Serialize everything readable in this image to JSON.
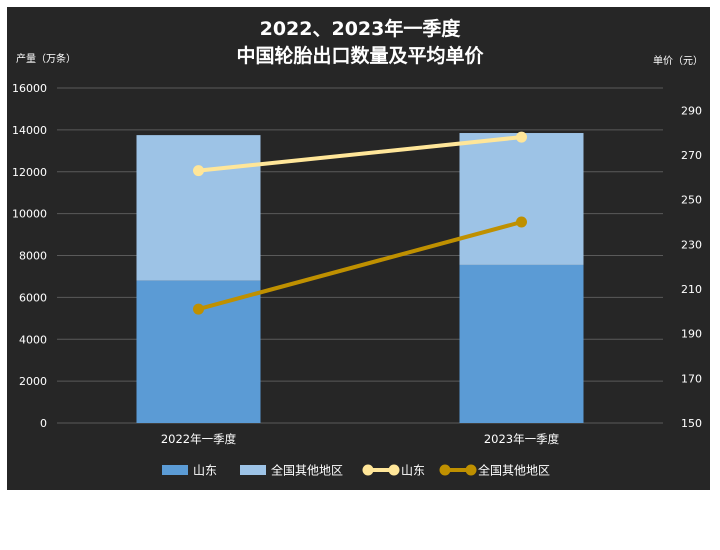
{
  "chart_data": {
    "type": "bar",
    "title_lines": [
      "2022、2023年一季度",
      "中国轮胎出口数量及平均单价"
    ],
    "ylabel_left": "产量（万条）",
    "ylabel_right": "单价（元）",
    "categories": [
      "2022年一季度",
      "2023年一季度"
    ],
    "ylim_left": [
      0,
      16000
    ],
    "yticks_left": [
      "0",
      "2000",
      "4000",
      "6000",
      "8000",
      "10000",
      "12000",
      "14000",
      "16000"
    ],
    "ylim_right": [
      150,
      300
    ],
    "yticks_right": [
      "150",
      "170",
      "190",
      "210",
      "230",
      "250",
      "270",
      "290"
    ],
    "grid": true,
    "legend_position": "bottom",
    "bar_series": [
      {
        "name": "山东",
        "values": [
          6800,
          7550
        ],
        "color": "#5b9bd5"
      },
      {
        "name": "全国其他地区",
        "values": [
          6950,
          6300
        ],
        "color": "#9dc3e6"
      }
    ],
    "line_series": [
      {
        "name": "山东",
        "values": [
          263,
          278
        ],
        "color": "#ffe699"
      },
      {
        "name": "全国其他地区",
        "values": [
          201,
          240
        ],
        "color": "#bf9000"
      }
    ]
  }
}
